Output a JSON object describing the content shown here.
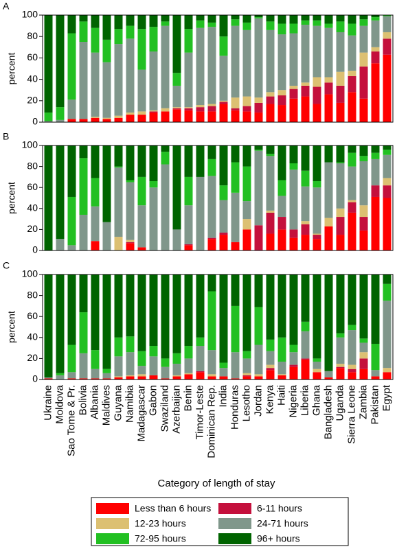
{
  "chart_data": [
    {
      "type": "bar",
      "stacked": true,
      "label": "A",
      "ylabel": "percent",
      "ylim": [
        0,
        100
      ],
      "yticks": [
        0,
        20,
        40,
        60,
        80,
        100
      ],
      "series": [
        {
          "name": "Less than 6 hours",
          "color": "#ff0000",
          "values": [
            0,
            0,
            3,
            3,
            4,
            3,
            4,
            7,
            7,
            9,
            10,
            12,
            11,
            10,
            10,
            17,
            11,
            10,
            9,
            17,
            16,
            22,
            24,
            17,
            26,
            18,
            28,
            22,
            55,
            63
          ]
        },
        {
          "name": "6-11 hours",
          "color": "#c4103c",
          "values": [
            0,
            0,
            0,
            0,
            0,
            0,
            0,
            0,
            0,
            1,
            0,
            1,
            2,
            4,
            5,
            2,
            2,
            5,
            9,
            7,
            9,
            9,
            10,
            16,
            11,
            16,
            15,
            30,
            11,
            15
          ]
        },
        {
          "name": "12-23 hours",
          "color": "#dcc072",
          "values": [
            0,
            0,
            0,
            0,
            1,
            1,
            2,
            2,
            3,
            1,
            3,
            1,
            1,
            2,
            2,
            1,
            10,
            9,
            5,
            4,
            5,
            3,
            3,
            9,
            5,
            13,
            5,
            13,
            4,
            6
          ]
        },
        {
          "name": "24-71 hours",
          "color": "#80978b",
          "values": [
            1,
            2,
            18,
            72,
            60,
            52,
            67,
            69,
            39,
            55,
            77,
            20,
            51,
            72,
            72,
            42,
            67,
            62,
            74,
            58,
            52,
            49,
            54,
            48,
            46,
            37,
            33,
            25,
            25,
            15
          ]
        },
        {
          "name": "72-95 hours",
          "color": "#22c022",
          "values": [
            8,
            12,
            62,
            19,
            23,
            21,
            14,
            12,
            38,
            23,
            4,
            12,
            22,
            7,
            4,
            18,
            6,
            7,
            1,
            8,
            10,
            9,
            4,
            5,
            4,
            10,
            11,
            6,
            3,
            1
          ]
        },
        {
          "name": "96+ hours",
          "color": "#006400",
          "values": [
            91,
            86,
            17,
            6,
            12,
            23,
            13,
            10,
            13,
            11,
            6,
            54,
            13,
            5,
            7,
            20,
            4,
            7,
            2,
            6,
            8,
            8,
            5,
            5,
            8,
            6,
            8,
            4,
            2,
            0
          ]
        }
      ]
    },
    {
      "type": "bar",
      "stacked": true,
      "label": "B",
      "ylabel": "percent",
      "ylim": [
        0,
        100
      ],
      "yticks": [
        0,
        20,
        40,
        60,
        80,
        100
      ],
      "series": [
        {
          "name": "Less than 6 hours",
          "color": "#ff0000",
          "values": [
            0,
            0,
            0,
            0,
            9,
            0,
            0,
            7,
            3,
            0,
            0,
            0,
            5,
            0,
            11,
            15,
            8,
            20,
            0,
            16,
            20,
            12,
            15,
            11,
            23,
            15,
            36,
            19,
            51,
            50
          ]
        },
        {
          "name": "6-11 hours",
          "color": "#c4103c",
          "values": [
            0,
            0,
            0,
            0,
            0,
            0,
            0,
            1,
            0,
            0,
            0,
            0,
            1,
            0,
            1,
            2,
            0,
            0,
            24,
            20,
            12,
            8,
            10,
            4,
            0,
            17,
            10,
            13,
            11,
            12
          ]
        },
        {
          "name": "12-23 hours",
          "color": "#dcc072",
          "values": [
            0,
            0,
            0,
            0,
            0,
            0,
            13,
            2,
            0,
            0,
            0,
            0,
            0,
            0,
            0,
            0,
            0,
            10,
            0,
            2,
            0,
            0,
            3,
            1,
            8,
            8,
            2,
            11,
            0,
            7
          ]
        },
        {
          "name": "24-71 hours",
          "color": "#80978b",
          "values": [
            0,
            11,
            5,
            34,
            33,
            27,
            66,
            55,
            40,
            60,
            82,
            20,
            37,
            70,
            59,
            31,
            47,
            17,
            71,
            52,
            20,
            57,
            33,
            44,
            53,
            43,
            32,
            42,
            25,
            22
          ]
        },
        {
          "name": "72-95 hours",
          "color": "#22c022",
          "values": [
            0,
            0,
            46,
            54,
            27,
            0,
            1,
            2,
            27,
            6,
            12,
            0,
            27,
            0,
            16,
            14,
            29,
            33,
            1,
            2,
            15,
            6,
            15,
            6,
            0,
            1,
            13,
            5,
            6,
            5
          ]
        },
        {
          "name": "96+ hours",
          "color": "#006400",
          "values": [
            100,
            89,
            49,
            12,
            31,
            73,
            20,
            33,
            30,
            34,
            6,
            80,
            30,
            30,
            13,
            38,
            16,
            20,
            4,
            8,
            33,
            17,
            24,
            34,
            16,
            16,
            7,
            10,
            7,
            4
          ]
        }
      ]
    },
    {
      "type": "bar",
      "stacked": true,
      "label": "C",
      "ylabel": "percent",
      "ylim": [
        0,
        100
      ],
      "yticks": [
        0,
        20,
        40,
        60,
        80,
        100
      ],
      "xlabel": "Category of length of stay",
      "categories": [
        "Ukraine",
        "Moldova",
        "Sao Tome & Pr.",
        "Bolivia",
        "Albania",
        "Maldives",
        "Guyana",
        "Namibia",
        "Madagascar",
        "Gabon",
        "Swaziland",
        "Azerbaijan",
        "Benin",
        "Timor-Leste",
        "Dominican Rep.",
        "India",
        "Honduras",
        "Lesotho",
        "Jordan",
        "Kenya",
        "Haiti",
        "Nigeria",
        "Liberia",
        "Ghana",
        "Bangladesh",
        "Uganda",
        "Sierra Leone",
        "Zambia",
        "Pakistan",
        "Egypt"
      ],
      "series": [
        {
          "name": "Less than 6 hours",
          "color": "#ff0000",
          "values": [
            1,
            0,
            1,
            1,
            1,
            1,
            2,
            3,
            3,
            4,
            1,
            3,
            5,
            7,
            3,
            3,
            1,
            3,
            3,
            9,
            4,
            12,
            19,
            7,
            2,
            11,
            7,
            10,
            3,
            7
          ]
        },
        {
          "name": "6-11 hours",
          "color": "#c4103c",
          "values": [
            0,
            0,
            0,
            0,
            0,
            0,
            0,
            0,
            0,
            0,
            0,
            0,
            0,
            1,
            0,
            0,
            0,
            1,
            0,
            2,
            0,
            2,
            1,
            0,
            0,
            1,
            3,
            10,
            0,
            0
          ]
        },
        {
          "name": "12-23 hours",
          "color": "#dcc072",
          "values": [
            0,
            0,
            0,
            0,
            0,
            0,
            1,
            1,
            2,
            0,
            0,
            1,
            1,
            0,
            2,
            0,
            0,
            2,
            2,
            3,
            1,
            0,
            0,
            3,
            0,
            3,
            4,
            6,
            0,
            4
          ]
        },
        {
          "name": "24-71 hours",
          "color": "#80978b",
          "values": [
            1,
            4,
            6,
            24,
            9,
            5,
            19,
            22,
            8,
            18,
            11,
            11,
            14,
            24,
            23,
            8,
            25,
            14,
            28,
            13,
            12,
            12,
            26,
            7,
            6,
            25,
            33,
            9,
            6,
            64
          ]
        },
        {
          "name": "72-95 hours",
          "color": "#22c022",
          "values": [
            0,
            2,
            26,
            39,
            18,
            4,
            18,
            15,
            14,
            10,
            8,
            10,
            12,
            8,
            56,
            5,
            44,
            7,
            36,
            11,
            23,
            7,
            9,
            3,
            0,
            4,
            5,
            4,
            25,
            16
          ]
        },
        {
          "name": "96+ hours",
          "color": "#006400",
          "values": [
            98,
            94,
            67,
            36,
            72,
            90,
            60,
            59,
            73,
            68,
            80,
            75,
            68,
            60,
            16,
            84,
            30,
            73,
            31,
            62,
            60,
            67,
            45,
            80,
            92,
            56,
            48,
            61,
            66,
            9
          ]
        }
      ]
    }
  ]
}
